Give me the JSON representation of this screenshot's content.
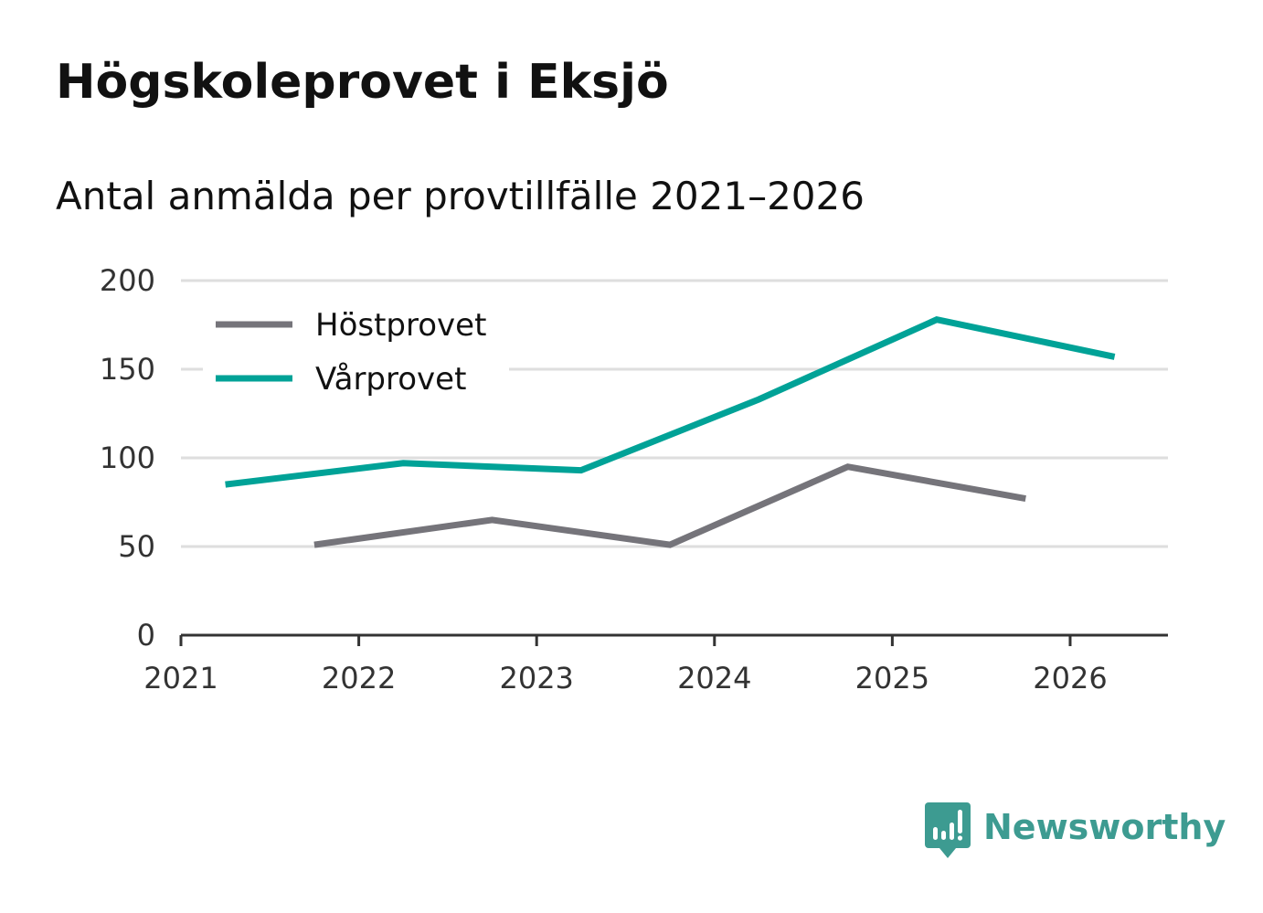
{
  "chart_data": {
    "type": "line",
    "title": "Högskoleprovet i Eksjö",
    "subtitle": "Antal anmälda per provtillfälle 2021–2026",
    "xlabel": "",
    "ylabel": "",
    "ylim": [
      0,
      200
    ],
    "yticks": [
      0,
      50,
      100,
      150,
      200
    ],
    "xlim": [
      2021,
      2026.55
    ],
    "xticks": [
      2021,
      2022,
      2023,
      2024,
      2025,
      2026
    ],
    "xtick_labels": [
      "2021",
      "2022",
      "2023",
      "2024",
      "2025",
      "2026"
    ],
    "grid": true,
    "legend_position": "top-left",
    "series": [
      {
        "name": "Höstprovet",
        "color": "#75747a",
        "x": [
          2021.75,
          2022.75,
          2023.75,
          2024.75,
          2025.75
        ],
        "values": [
          51,
          65,
          51,
          95,
          77
        ]
      },
      {
        "name": "Vårprovet",
        "color": "#00a297",
        "x": [
          2021.25,
          2022.25,
          2023.25,
          2024.25,
          2025.25,
          2026.25
        ],
        "values": [
          85,
          97,
          93,
          133,
          178,
          157
        ]
      }
    ]
  },
  "brand": {
    "name": "Newsworthy",
    "icon": "newsworthy-logo-icon",
    "color": "#3d9b91"
  }
}
